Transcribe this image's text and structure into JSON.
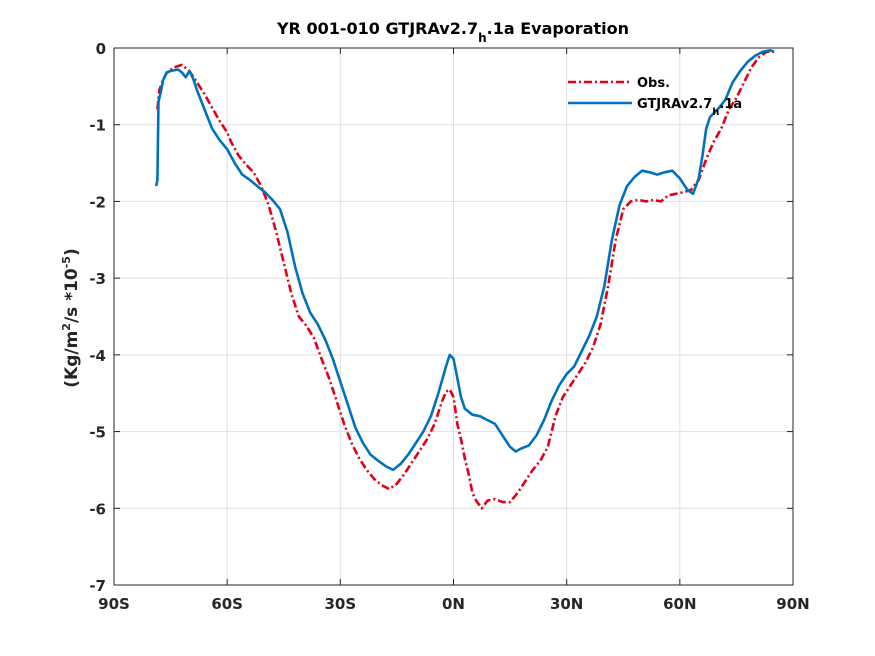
{
  "chart_data": {
    "type": "line",
    "title": {
      "main": "YR 001-010 GTJRAv2.7",
      "sub": "h",
      "tail": ".1a Evaporation"
    },
    "ylabel": {
      "pre": "(Kg/m",
      "sup1": "2",
      "mid": "/s *10",
      "sup2": "-5",
      "post": ")"
    },
    "xlim": [
      -90,
      90
    ],
    "ylim": [
      -7,
      0
    ],
    "x_ticks": [
      -90,
      -60,
      -30,
      0,
      30,
      60,
      90
    ],
    "x_tick_labels": [
      "90S",
      "60S",
      "30S",
      "0N",
      "30N",
      "60N",
      "90N"
    ],
    "y_ticks": [
      0,
      -1,
      -2,
      -3,
      -4,
      -5,
      -6,
      -7
    ],
    "y_tick_labels": [
      "0",
      "-1",
      "-2",
      "-3",
      "-4",
      "-5",
      "-6",
      "-7"
    ],
    "grid": true,
    "legend_position": "top-right",
    "series": [
      {
        "name": "Obs.",
        "legend_label": {
          "main": "Obs.",
          "sub": "",
          "tail": ""
        },
        "color": "#e0001a",
        "dash": "dashdot",
        "points": [
          [
            -78.5,
            -0.8
          ],
          [
            -78.0,
            -0.55
          ],
          [
            -77.0,
            -0.42
          ],
          [
            -76.0,
            -0.32
          ],
          [
            -74.0,
            -0.25
          ],
          [
            -72.0,
            -0.22
          ],
          [
            -70.0,
            -0.3
          ],
          [
            -68.0,
            -0.45
          ],
          [
            -66.0,
            -0.6
          ],
          [
            -64.0,
            -0.78
          ],
          [
            -62.0,
            -0.95
          ],
          [
            -60.0,
            -1.1
          ],
          [
            -59.0,
            -1.22
          ],
          [
            -57.0,
            -1.4
          ],
          [
            -55.0,
            -1.52
          ],
          [
            -53.0,
            -1.62
          ],
          [
            -51.0,
            -1.8
          ],
          [
            -49.0,
            -2.05
          ],
          [
            -47.0,
            -2.4
          ],
          [
            -45.0,
            -2.8
          ],
          [
            -43.0,
            -3.2
          ],
          [
            -41.0,
            -3.5
          ],
          [
            -39.0,
            -3.62
          ],
          [
            -37.0,
            -3.78
          ],
          [
            -35.0,
            -4.05
          ],
          [
            -33.0,
            -4.3
          ],
          [
            -31.0,
            -4.6
          ],
          [
            -29.0,
            -4.9
          ],
          [
            -27.0,
            -5.15
          ],
          [
            -25.0,
            -5.35
          ],
          [
            -23.0,
            -5.5
          ],
          [
            -21.0,
            -5.62
          ],
          [
            -19.0,
            -5.7
          ],
          [
            -17.0,
            -5.75
          ],
          [
            -15.0,
            -5.68
          ],
          [
            -13.0,
            -5.55
          ],
          [
            -11.0,
            -5.4
          ],
          [
            -9.0,
            -5.25
          ],
          [
            -7.0,
            -5.1
          ],
          [
            -5.0,
            -4.9
          ],
          [
            -3.0,
            -4.6
          ],
          [
            -2.0,
            -4.48
          ],
          [
            -1.0,
            -4.45
          ],
          [
            0.0,
            -4.55
          ],
          [
            1.0,
            -4.9
          ],
          [
            2.0,
            -5.1
          ],
          [
            3.0,
            -5.35
          ],
          [
            4.0,
            -5.55
          ],
          [
            5.0,
            -5.8
          ],
          [
            6.0,
            -5.9
          ],
          [
            7.5,
            -6.0
          ],
          [
            9.0,
            -5.9
          ],
          [
            11.0,
            -5.88
          ],
          [
            13.0,
            -5.92
          ],
          [
            15.0,
            -5.92
          ],
          [
            17.0,
            -5.8
          ],
          [
            19.0,
            -5.65
          ],
          [
            21.0,
            -5.5
          ],
          [
            23.0,
            -5.38
          ],
          [
            25.0,
            -5.2
          ],
          [
            27.0,
            -4.8
          ],
          [
            29.0,
            -4.55
          ],
          [
            31.0,
            -4.4
          ],
          [
            33.0,
            -4.25
          ],
          [
            35.0,
            -4.1
          ],
          [
            37.0,
            -3.9
          ],
          [
            39.0,
            -3.6
          ],
          [
            41.0,
            -3.1
          ],
          [
            43.0,
            -2.5
          ],
          [
            45.0,
            -2.1
          ],
          [
            47.0,
            -2.0
          ],
          [
            49.0,
            -1.98
          ],
          [
            51.0,
            -2.0
          ],
          [
            53.0,
            -1.98
          ],
          [
            55.0,
            -2.0
          ],
          [
            57.0,
            -1.92
          ],
          [
            59.0,
            -1.9
          ],
          [
            61.0,
            -1.88
          ],
          [
            63.0,
            -1.85
          ],
          [
            65.0,
            -1.72
          ],
          [
            67.0,
            -1.45
          ],
          [
            69.0,
            -1.22
          ],
          [
            71.0,
            -1.05
          ],
          [
            73.0,
            -0.8
          ],
          [
            75.0,
            -0.65
          ],
          [
            77.0,
            -0.45
          ],
          [
            79.0,
            -0.25
          ],
          [
            81.0,
            -0.12
          ],
          [
            83.0,
            -0.05
          ],
          [
            85.0,
            -0.05
          ]
        ]
      },
      {
        "name": "GTJRAv2.7_h.1a",
        "legend_label": {
          "main": "GTJRAv2.7",
          "sub": "h",
          "tail": ".1a"
        },
        "color": "#0072bd",
        "dash": "solid",
        "points": [
          [
            -78.8,
            -1.8
          ],
          [
            -78.5,
            -1.72
          ],
          [
            -78.2,
            -0.7
          ],
          [
            -77.5,
            -0.55
          ],
          [
            -77.0,
            -0.42
          ],
          [
            -76.0,
            -0.32
          ],
          [
            -75.0,
            -0.3
          ],
          [
            -74.0,
            -0.29
          ],
          [
            -73.0,
            -0.28
          ],
          [
            -72.0,
            -0.32
          ],
          [
            -71.0,
            -0.38
          ],
          [
            -70.0,
            -0.3
          ],
          [
            -69.0,
            -0.4
          ],
          [
            -68.0,
            -0.55
          ],
          [
            -66.0,
            -0.8
          ],
          [
            -64.0,
            -1.05
          ],
          [
            -62.0,
            -1.2
          ],
          [
            -60.0,
            -1.32
          ],
          [
            -58.0,
            -1.5
          ],
          [
            -56.0,
            -1.65
          ],
          [
            -54.0,
            -1.72
          ],
          [
            -52.0,
            -1.8
          ],
          [
            -50.0,
            -1.88
          ],
          [
            -48.0,
            -1.98
          ],
          [
            -46.0,
            -2.1
          ],
          [
            -44.0,
            -2.4
          ],
          [
            -42.0,
            -2.85
          ],
          [
            -40.0,
            -3.2
          ],
          [
            -38.0,
            -3.45
          ],
          [
            -36.0,
            -3.6
          ],
          [
            -34.0,
            -3.8
          ],
          [
            -32.0,
            -4.05
          ],
          [
            -30.0,
            -4.35
          ],
          [
            -28.0,
            -4.65
          ],
          [
            -26.0,
            -4.95
          ],
          [
            -24.0,
            -5.15
          ],
          [
            -22.0,
            -5.3
          ],
          [
            -20.0,
            -5.38
          ],
          [
            -18.0,
            -5.45
          ],
          [
            -16.0,
            -5.5
          ],
          [
            -14.0,
            -5.42
          ],
          [
            -12.0,
            -5.3
          ],
          [
            -10.0,
            -5.15
          ],
          [
            -8.0,
            -5.0
          ],
          [
            -6.0,
            -4.8
          ],
          [
            -4.0,
            -4.5
          ],
          [
            -2.0,
            -4.15
          ],
          [
            -1.0,
            -4.0
          ],
          [
            0.0,
            -4.05
          ],
          [
            1.0,
            -4.3
          ],
          [
            2.0,
            -4.55
          ],
          [
            3.0,
            -4.7
          ],
          [
            5.0,
            -4.78
          ],
          [
            7.0,
            -4.8
          ],
          [
            9.0,
            -4.85
          ],
          [
            11.0,
            -4.9
          ],
          [
            13.0,
            -5.05
          ],
          [
            15.0,
            -5.2
          ],
          [
            16.5,
            -5.26
          ],
          [
            18.0,
            -5.22
          ],
          [
            20.0,
            -5.18
          ],
          [
            22.0,
            -5.05
          ],
          [
            24.0,
            -4.85
          ],
          [
            26.0,
            -4.6
          ],
          [
            28.0,
            -4.4
          ],
          [
            30.0,
            -4.25
          ],
          [
            32.0,
            -4.15
          ],
          [
            34.0,
            -3.95
          ],
          [
            36.0,
            -3.75
          ],
          [
            38.0,
            -3.5
          ],
          [
            40.0,
            -3.1
          ],
          [
            42.0,
            -2.5
          ],
          [
            44.0,
            -2.05
          ],
          [
            46.0,
            -1.8
          ],
          [
            48.0,
            -1.68
          ],
          [
            50.0,
            -1.6
          ],
          [
            52.0,
            -1.62
          ],
          [
            54.0,
            -1.65
          ],
          [
            56.0,
            -1.62
          ],
          [
            58.0,
            -1.6
          ],
          [
            60.0,
            -1.7
          ],
          [
            62.0,
            -1.85
          ],
          [
            63.5,
            -1.9
          ],
          [
            65.0,
            -1.7
          ],
          [
            66.0,
            -1.4
          ],
          [
            67.0,
            -1.05
          ],
          [
            68.0,
            -0.9
          ],
          [
            70.0,
            -0.8
          ],
          [
            72.0,
            -0.68
          ],
          [
            74.0,
            -0.45
          ],
          [
            76.0,
            -0.3
          ],
          [
            78.0,
            -0.18
          ],
          [
            80.0,
            -0.1
          ],
          [
            82.0,
            -0.05
          ],
          [
            84.0,
            -0.03
          ],
          [
            85.0,
            -0.05
          ]
        ]
      }
    ]
  }
}
